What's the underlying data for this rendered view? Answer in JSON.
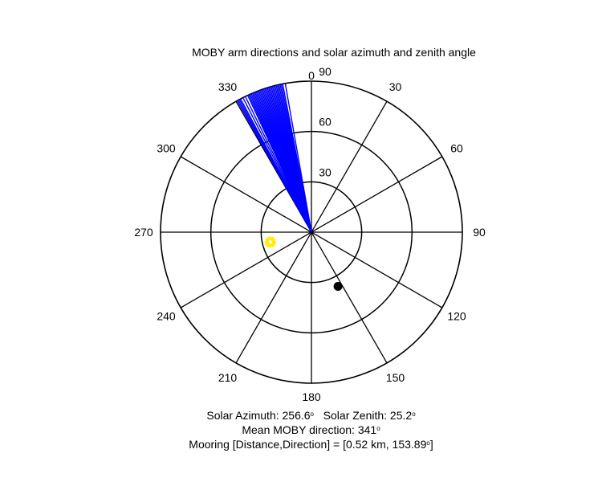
{
  "chart_data": {
    "type": "polar",
    "title": "MOBY arm directions and solar azimuth and zenith angle",
    "angular_axis": {
      "direction": "clockwise",
      "zero_at": "top",
      "tick_labels": [
        "0",
        "30",
        "60",
        "90",
        "120",
        "150",
        "180",
        "210",
        "240",
        "270",
        "300",
        "330"
      ],
      "spoke_step_deg": 30
    },
    "radial_axis": {
      "quantity": "zenith angle (deg)",
      "range": [
        0,
        90
      ],
      "rings": [
        30,
        60,
        90
      ],
      "tick_labels": [
        "30",
        "60",
        "90"
      ]
    },
    "grid": true,
    "series": [
      {
        "kind": "arm_direction_rays",
        "color": "#0000ff",
        "radius": 90,
        "azimuths_deg": [
          330.5,
          331.0,
          331.5,
          332.0,
          333.0,
          334.0,
          335.0,
          335.5,
          336.0,
          336.5,
          337.0,
          337.5,
          338.0,
          338.5,
          339.0,
          339.5,
          340.0,
          340.5,
          341.0,
          341.5,
          342.0,
          342.5,
          343.0,
          343.5,
          344.0,
          344.5,
          345.0,
          345.5,
          346.0,
          346.5,
          347.0,
          347.5,
          348.0,
          348.5,
          349.0,
          350.0
        ]
      },
      {
        "kind": "sun_marker",
        "color": "#ffee00",
        "azimuth_deg": 256.6,
        "zenith_deg": 25.2
      },
      {
        "kind": "mooring_marker",
        "color": "#000000",
        "azimuth_deg": 153.89,
        "radius": 36
      }
    ],
    "annotations": {
      "solar_azimuth_label": "Solar Azimuth: 256.6",
      "solar_zenith_label": "Solar Zenith: 25.2",
      "mean_direction_label": "Mean MOBY direction: 341",
      "mooring_label_prefix": "Mooring [Distance,Direction] = [0.52 km, 153.89",
      "mooring_label_suffix": "]",
      "degree_symbol": "o"
    }
  }
}
